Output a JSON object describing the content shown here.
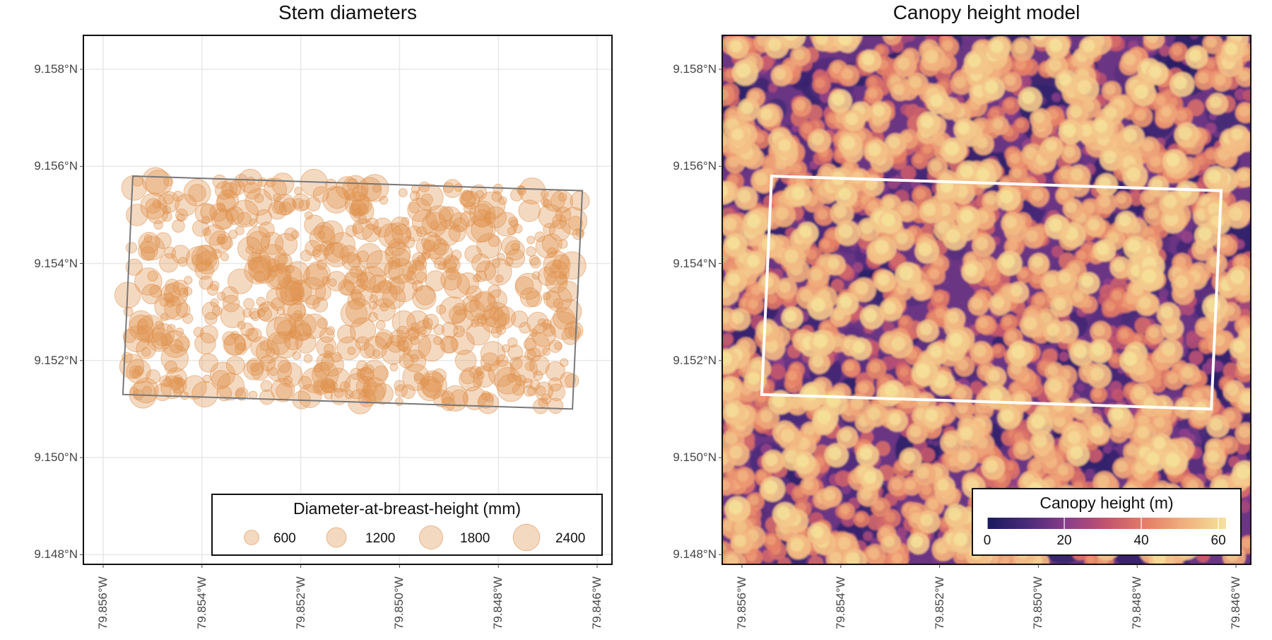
{
  "chart_data": [
    {
      "type": "scatter",
      "title": "Stem diameters",
      "y_ticks": [
        "9.158°N",
        "9.156°N",
        "9.154°N",
        "9.152°N",
        "9.150°N",
        "9.148°N"
      ],
      "x_ticks": [
        "79.856°W",
        "79.854°W",
        "79.852°W",
        "79.850°W",
        "79.848°W",
        "79.846°W"
      ],
      "x_range": [
        -79.8564,
        -79.8457
      ],
      "y_range": [
        9.1478,
        9.1587
      ],
      "grid": true,
      "plot_boundary": [
        [
          -79.8554,
          9.1558
        ],
        [
          -79.8463,
          9.1555
        ],
        [
          -79.8465,
          9.151
        ],
        [
          -79.8556,
          9.1513
        ]
      ],
      "point_color": "#e0914e",
      "point_count": 720,
      "dbh_range_mm": [
        100,
        2600
      ],
      "legend": {
        "title": "Diameter-at-breast-height (mm)",
        "placement": "bottom-right",
        "entries": [
          "600",
          "1200",
          "1800",
          "2400"
        ],
        "values": [
          600,
          1200,
          1800,
          2400
        ]
      }
    },
    {
      "type": "heatmap",
      "title": "Canopy height model",
      "y_ticks": [
        "9.158°N",
        "9.156°N",
        "9.154°N",
        "9.152°N",
        "9.150°N",
        "9.148°N"
      ],
      "x_ticks": [
        "79.856°W",
        "79.854°W",
        "79.852°W",
        "79.850°W",
        "79.848°W",
        "79.846°W"
      ],
      "x_range": [
        -79.8564,
        -79.8457
      ],
      "y_range": [
        9.1478,
        9.1587
      ],
      "plot_boundary": [
        [
          -79.8554,
          9.1558
        ],
        [
          -79.8463,
          9.1555
        ],
        [
          -79.8465,
          9.151
        ],
        [
          -79.8556,
          9.1513
        ]
      ],
      "boundary_color": "#ffffff",
      "height_range_m": [
        0,
        62
      ],
      "colormap": [
        "#1a1a5e",
        "#4a2a7a",
        "#8a3d8a",
        "#c2546e",
        "#e57f66",
        "#f2b27f",
        "#f5e39a"
      ],
      "legend": {
        "title": "Canopy height (m)",
        "placement": "bottom-right",
        "ticks": [
          "0",
          "20",
          "40",
          "60"
        ],
        "tick_values": [
          0,
          20,
          40,
          60
        ]
      }
    }
  ]
}
